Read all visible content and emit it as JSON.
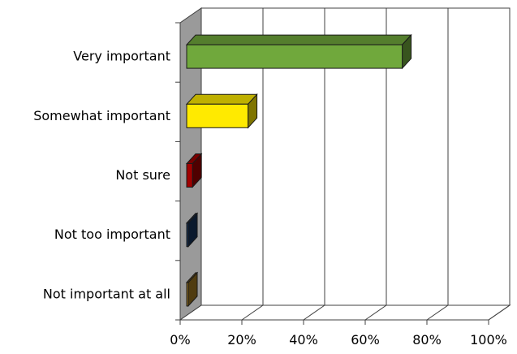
{
  "chart_data": {
    "type": "bar",
    "orientation": "horizontal",
    "style": "3d",
    "title": "",
    "xlabel": "",
    "ylabel": "",
    "xlim": [
      0,
      100
    ],
    "grid": true,
    "legend": "none",
    "categories": [
      "Very important",
      "Somewhat important",
      "Not sure",
      "Not too important",
      "Not important at all"
    ],
    "values": [
      72,
      22,
      4,
      1,
      1
    ],
    "value_unit": "%",
    "colors": [
      "#70a83c",
      "#ffea00",
      "#a00000",
      "#14325a",
      "#a07820"
    ],
    "x_ticks": [
      "0%",
      "20%",
      "40%",
      "60%",
      "80%",
      "100%"
    ]
  }
}
